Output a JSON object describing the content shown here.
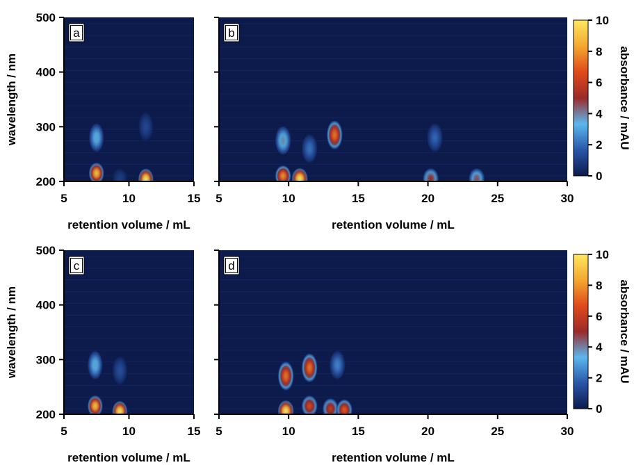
{
  "figure": {
    "colorbar_label": "absorbance / mAU",
    "colorbar_ticks": [
      0,
      2,
      4,
      6,
      8,
      10
    ],
    "colormap": [
      "#0c1a4c",
      "#2a56a8",
      "#5bb8ee",
      "#9a2a2a",
      "#e04a1a",
      "#f3a830",
      "#ffe860"
    ]
  },
  "chart_data": [
    {
      "type": "heatmap",
      "panel": "a",
      "xlabel": "retention volume / mL",
      "ylabel": "wavelength / nm",
      "xlim": [
        5,
        15
      ],
      "ylim": [
        200,
        500
      ],
      "xticks": [
        5,
        10,
        15
      ],
      "yticks": [
        200,
        300,
        400,
        500
      ],
      "zlim": [
        0,
        10
      ],
      "peaks": [
        {
          "x": 7.5,
          "y": 215,
          "z": 9.0
        },
        {
          "x": 7.5,
          "y": 280,
          "z": 3.5
        },
        {
          "x": 9.3,
          "y": 205,
          "z": 1.0
        },
        {
          "x": 11.3,
          "y": 204,
          "z": 10.0
        },
        {
          "x": 11.3,
          "y": 300,
          "z": 1.3
        }
      ]
    },
    {
      "type": "heatmap",
      "panel": "b",
      "xlabel": "retention volume / mL",
      "ylabel": "wavelength / nm",
      "xlim": [
        5,
        30
      ],
      "ylim": [
        200,
        500
      ],
      "xticks": [
        5,
        10,
        15,
        20,
        25,
        30
      ],
      "yticks": [
        200,
        300,
        400,
        500
      ],
      "zlim": [
        0,
        10
      ],
      "peaks": [
        {
          "x": 9.6,
          "y": 210,
          "z": 8.0
        },
        {
          "x": 9.6,
          "y": 275,
          "z": 3.8
        },
        {
          "x": 10.8,
          "y": 205,
          "z": 10.0
        },
        {
          "x": 11.5,
          "y": 260,
          "z": 2.2
        },
        {
          "x": 13.3,
          "y": 285,
          "z": 7.5
        },
        {
          "x": 20.2,
          "y": 205,
          "z": 5.0
        },
        {
          "x": 20.5,
          "y": 280,
          "z": 2.0
        },
        {
          "x": 23.5,
          "y": 205,
          "z": 4.5
        }
      ]
    },
    {
      "type": "heatmap",
      "panel": "c",
      "xlabel": "retention volume / mL",
      "ylabel": "wavelength / nm",
      "xlim": [
        5,
        15
      ],
      "ylim": [
        200,
        500
      ],
      "xticks": [
        5,
        10,
        15
      ],
      "yticks": [
        200,
        300,
        400,
        500
      ],
      "zlim": [
        0,
        10
      ],
      "peaks": [
        {
          "x": 7.4,
          "y": 215,
          "z": 9.0
        },
        {
          "x": 7.4,
          "y": 290,
          "z": 3.5
        },
        {
          "x": 9.3,
          "y": 205,
          "z": 10.0
        },
        {
          "x": 9.3,
          "y": 280,
          "z": 1.5
        }
      ]
    },
    {
      "type": "heatmap",
      "panel": "d",
      "xlabel": "retention volume / mL",
      "ylabel": "wavelength / nm",
      "xlim": [
        5,
        30
      ],
      "ylim": [
        200,
        500
      ],
      "xticks": [
        5,
        10,
        15,
        20,
        25,
        30
      ],
      "yticks": [
        200,
        300,
        400,
        500
      ],
      "zlim": [
        0,
        10
      ],
      "peaks": [
        {
          "x": 9.8,
          "y": 206,
          "z": 10.0
        },
        {
          "x": 9.8,
          "y": 270,
          "z": 7.5
        },
        {
          "x": 11.5,
          "y": 285,
          "z": 7.5
        },
        {
          "x": 11.5,
          "y": 215,
          "z": 6.5
        },
        {
          "x": 13.0,
          "y": 210,
          "z": 6.0
        },
        {
          "x": 14.0,
          "y": 208,
          "z": 7.0
        },
        {
          "x": 13.5,
          "y": 290,
          "z": 2.5
        }
      ]
    }
  ]
}
